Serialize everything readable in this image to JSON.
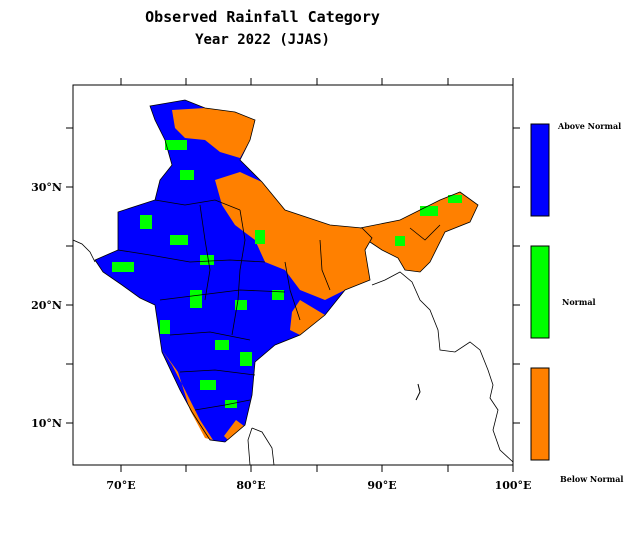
{
  "title": "Observed Rainfall Category",
  "subtitle": "Year 2022 (JJAS)",
  "axes": {
    "x_ticks": [
      "70°E",
      "80°E",
      "90°E",
      "100°E"
    ],
    "y_ticks": [
      "10°N",
      "20°N",
      "30°N"
    ]
  },
  "legend": [
    {
      "label": "Above Normal",
      "color": "#0000ff"
    },
    {
      "label": "Normal",
      "color": "#00ff00"
    },
    {
      "label": "Below Normal",
      "color": "#ff8000"
    }
  ],
  "colors": {
    "above": "#0000ff",
    "normal": "#00ff00",
    "below": "#ff8000",
    "border": "#000000"
  }
}
